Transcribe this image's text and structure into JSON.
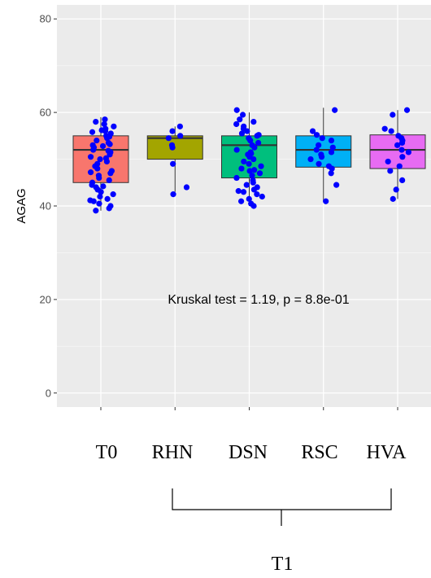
{
  "chart_data": {
    "type": "boxplot",
    "ylabel": "AGAG",
    "ylim": [
      -3,
      83
    ],
    "yticks": [
      0,
      20,
      40,
      60,
      80
    ],
    "grid": true,
    "panel_color": "#ebebeb",
    "categories": [
      "T0",
      "RHN",
      "DSN",
      "RSC",
      "HVA"
    ],
    "boxes": [
      {
        "name": "T0",
        "color": "#f8766d",
        "min": 39,
        "q1": 45,
        "median": 52,
        "q3": 55,
        "max": 59
      },
      {
        "name": "RHN",
        "color": "#a3a500",
        "min": 43,
        "q1": 50,
        "median": 54.5,
        "q3": 55,
        "max": 57
      },
      {
        "name": "DSN",
        "color": "#00bf7d",
        "min": 40,
        "q1": 46,
        "median": 53,
        "q3": 55,
        "max": 60
      },
      {
        "name": "RSC",
        "color": "#00b0f6",
        "min": 41,
        "q1": 48.3,
        "median": 52,
        "q3": 55,
        "max": 61
      },
      {
        "name": "HVA",
        "color": "#e76bf3",
        "min": 41.5,
        "q1": 48,
        "median": 52,
        "q3": 55.2,
        "max": 60.5
      }
    ],
    "points": [
      [
        58.5,
        58,
        57.5,
        57,
        56.5,
        56,
        55.8,
        55.5,
        55,
        54.8,
        54.5,
        54,
        53.5,
        53,
        52.8,
        52.5,
        52,
        51.8,
        51.5,
        51,
        50.5,
        50,
        49.5,
        49,
        48.5,
        48,
        47.5,
        47,
        46.5,
        46,
        45.5,
        45,
        44.5,
        44,
        43.5,
        43,
        42.5,
        42,
        41.5,
        41,
        40.5,
        40,
        39.5,
        39,
        56.2,
        53.2,
        50.2,
        47.2,
        44.2,
        41.2
      ],
      [
        57,
        56,
        55,
        54.5,
        53,
        52.5,
        49,
        44,
        42.5
      ],
      [
        60.5,
        59.5,
        58.5,
        58,
        57.5,
        57,
        56.5,
        56,
        55.5,
        55,
        54.5,
        54,
        53.5,
        53,
        52.5,
        52,
        51.5,
        51,
        50.5,
        50,
        49.5,
        49,
        48.5,
        48,
        47.5,
        47,
        46.5,
        46,
        45.5,
        45,
        44.5,
        44,
        43.5,
        43,
        42.5,
        42,
        41.5,
        41,
        40.5,
        40,
        55.2,
        51.2,
        47.7,
        43.2
      ],
      [
        60.5,
        56,
        55.2,
        54.5,
        54,
        53,
        52.5,
        52,
        51.5,
        51,
        50.5,
        50,
        49,
        48.5,
        48,
        47,
        44.5,
        41
      ],
      [
        60.5,
        59.5,
        56.5,
        56,
        55,
        54.5,
        54,
        53.5,
        53,
        52,
        51.5,
        50.5,
        49.5,
        48.5,
        47.5,
        45.5,
        43.5,
        41.5
      ]
    ],
    "point_color": "#0000ff",
    "annotation": "Kruskal test = 1.19, p = 8.8e-01",
    "bracket_label": "T1"
  }
}
